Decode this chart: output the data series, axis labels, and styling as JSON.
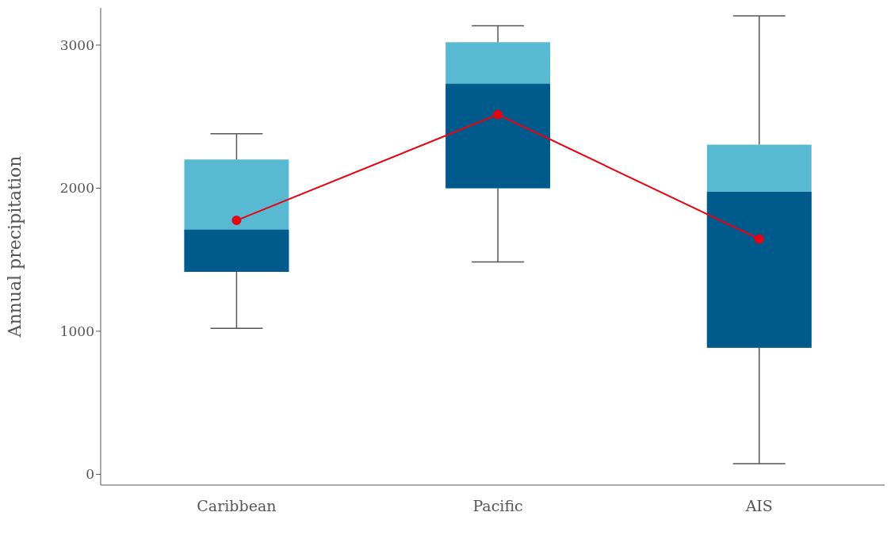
{
  "chart_data": {
    "type": "box",
    "ylabel": "Annual precipitation",
    "categories": [
      "Caribbean",
      "Pacific",
      "AIS"
    ],
    "series": [
      {
        "color": "#5ab9d2",
        "colors": [
          "#005a8c",
          "#005a8c",
          "#005a8c"
        ],
        "boxes": [
          {
            "low": 1020,
            "q1": 1415,
            "median": 1710,
            "q3": 2200,
            "high": 2380
          },
          {
            "low": 1485,
            "q1": 2000,
            "median": 2730,
            "q3": 3020,
            "high": 3135
          },
          {
            "low": 75,
            "q1": 885,
            "median": 1975,
            "q3": 2305,
            "high": 3205
          }
        ]
      },
      {
        "type": "line",
        "color": "#e30613",
        "values": [
          1775,
          2515,
          1645
        ]
      }
    ],
    "marker": "circle",
    "ylim": [
      -75,
      3260
    ],
    "yticks": [
      0,
      1000,
      2000,
      3000
    ],
    "grid": false
  }
}
